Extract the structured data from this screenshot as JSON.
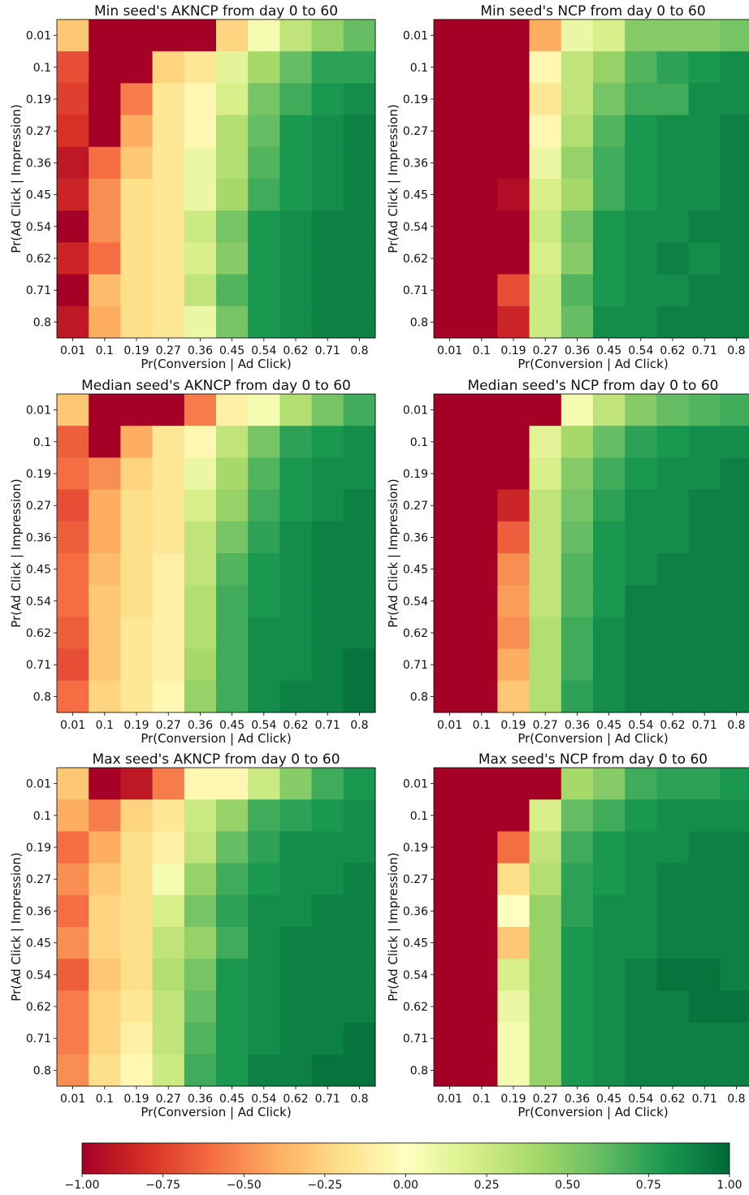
{
  "colormap": {
    "name": "RdYlGn",
    "stops": [
      "#a50026",
      "#d73027",
      "#f46d43",
      "#fdae61",
      "#fee08b",
      "#ffffbf",
      "#d9ef8b",
      "#a6d96a",
      "#66bd63",
      "#1a9850",
      "#006837"
    ]
  },
  "chart_data": [
    {
      "type": "heatmap",
      "title": "Min seed's AKNCP from day 0 to 60",
      "xlabel": "Pr(Conversion | Ad Click)",
      "ylabel": "Pr(Ad Click | Impression)",
      "x": [
        "0.01",
        "0.1",
        "0.19",
        "0.27",
        "0.36",
        "0.45",
        "0.54",
        "0.62",
        "0.71",
        "0.8"
      ],
      "y": [
        "0.01",
        "0.1",
        "0.19",
        "0.27",
        "0.36",
        "0.45",
        "0.54",
        "0.62",
        "0.71",
        "0.8"
      ],
      "values": [
        [
          -0.3,
          -1,
          -1,
          -1,
          -1,
          -0.25,
          0.05,
          0.3,
          0.45,
          0.6
        ],
        [
          -0.7,
          -1,
          -1,
          -0.25,
          -0.15,
          0.15,
          0.4,
          0.6,
          0.75,
          0.75
        ],
        [
          -0.75,
          -1,
          -0.55,
          -0.15,
          -0.05,
          0.2,
          0.55,
          0.7,
          0.8,
          0.85
        ],
        [
          -0.8,
          -1,
          -0.4,
          -0.15,
          -0.05,
          0.35,
          0.6,
          0.8,
          0.85,
          0.9
        ],
        [
          -0.9,
          -0.6,
          -0.3,
          -0.15,
          0.1,
          0.35,
          0.65,
          0.8,
          0.85,
          0.9
        ],
        [
          -0.85,
          -0.5,
          -0.2,
          -0.15,
          0.1,
          0.4,
          0.7,
          0.8,
          0.85,
          0.9
        ],
        [
          -1,
          -0.5,
          -0.2,
          -0.15,
          0.25,
          0.55,
          0.8,
          0.85,
          0.9,
          0.9
        ],
        [
          -0.85,
          -0.6,
          -0.2,
          -0.15,
          0.2,
          0.5,
          0.8,
          0.85,
          0.9,
          0.9
        ],
        [
          -1,
          -0.35,
          -0.2,
          -0.15,
          0.3,
          0.65,
          0.8,
          0.85,
          0.9,
          0.9
        ],
        [
          -0.9,
          -0.4,
          -0.2,
          -0.15,
          0.1,
          0.55,
          0.8,
          0.85,
          0.9,
          0.9
        ]
      ],
      "vmin": -1,
      "vmax": 1
    },
    {
      "type": "heatmap",
      "title": "Min seed's NCP from day 0 to 60",
      "xlabel": "Pr(Conversion | Ad Click)",
      "ylabel": "Pr(Ad Click | Impression)",
      "x": [
        "0.01",
        "0.1",
        "0.19",
        "0.27",
        "0.36",
        "0.45",
        "0.54",
        "0.62",
        "0.71",
        "0.8"
      ],
      "y": [
        "0.01",
        "0.1",
        "0.19",
        "0.27",
        "0.36",
        "0.45",
        "0.54",
        "0.62",
        "0.71",
        "0.8"
      ],
      "values": [
        [
          -1,
          -1,
          -1,
          -0.4,
          0.1,
          0.2,
          0.5,
          0.5,
          0.5,
          0.55
        ],
        [
          -1,
          -1,
          -1,
          -0.05,
          0.3,
          0.45,
          0.65,
          0.75,
          0.8,
          0.85
        ],
        [
          -1,
          -1,
          -1,
          -0.15,
          0.3,
          0.55,
          0.7,
          0.7,
          0.85,
          0.85
        ],
        [
          -1,
          -1,
          -1,
          -0.05,
          0.35,
          0.65,
          0.8,
          0.85,
          0.85,
          0.9
        ],
        [
          -1,
          -1,
          -1,
          0.1,
          0.45,
          0.7,
          0.8,
          0.85,
          0.85,
          0.9
        ],
        [
          -1,
          -1,
          -0.95,
          0.2,
          0.4,
          0.7,
          0.8,
          0.85,
          0.85,
          0.9
        ],
        [
          -1,
          -1,
          -1,
          0.25,
          0.55,
          0.8,
          0.85,
          0.85,
          0.9,
          0.9
        ],
        [
          -1,
          -1,
          -1,
          0.2,
          0.5,
          0.8,
          0.85,
          0.9,
          0.85,
          0.9
        ],
        [
          -1,
          -1,
          -0.7,
          0.25,
          0.65,
          0.8,
          0.85,
          0.85,
          0.9,
          0.9
        ],
        [
          -1,
          -1,
          -0.85,
          0.25,
          0.6,
          0.85,
          0.85,
          0.9,
          0.9,
          0.9
        ]
      ],
      "vmin": -1,
      "vmax": 1
    },
    {
      "type": "heatmap",
      "title": "Median seed's AKNCP from day 0 to 60",
      "xlabel": "Pr(Conversion | Ad Click)",
      "ylabel": "Pr(Ad Click | Impression)",
      "x": [
        "0.01",
        "0.1",
        "0.19",
        "0.27",
        "0.36",
        "0.45",
        "0.54",
        "0.62",
        "0.71",
        "0.8"
      ],
      "y": [
        "0.01",
        "0.1",
        "0.19",
        "0.27",
        "0.36",
        "0.45",
        "0.54",
        "0.62",
        "0.71",
        "0.8"
      ],
      "values": [
        [
          -0.3,
          -1,
          -1,
          -1,
          -0.55,
          -0.1,
          0.05,
          0.35,
          0.55,
          0.7
        ],
        [
          -0.65,
          -1,
          -0.4,
          -0.15,
          -0.05,
          0.3,
          0.55,
          0.75,
          0.8,
          0.85
        ],
        [
          -0.6,
          -0.5,
          -0.25,
          -0.15,
          0.1,
          0.4,
          0.65,
          0.8,
          0.85,
          0.85
        ],
        [
          -0.7,
          -0.4,
          -0.2,
          -0.15,
          0.2,
          0.45,
          0.7,
          0.8,
          0.85,
          0.9
        ],
        [
          -0.65,
          -0.4,
          -0.2,
          -0.15,
          0.3,
          0.55,
          0.75,
          0.85,
          0.9,
          0.9
        ],
        [
          -0.6,
          -0.35,
          -0.2,
          -0.1,
          0.3,
          0.65,
          0.8,
          0.85,
          0.9,
          0.9
        ],
        [
          -0.6,
          -0.3,
          -0.2,
          -0.1,
          0.35,
          0.7,
          0.8,
          0.85,
          0.9,
          0.9
        ],
        [
          -0.65,
          -0.3,
          -0.15,
          -0.1,
          0.35,
          0.7,
          0.85,
          0.85,
          0.9,
          0.9
        ],
        [
          -0.7,
          -0.3,
          -0.15,
          -0.1,
          0.4,
          0.7,
          0.85,
          0.85,
          0.9,
          0.95
        ],
        [
          -0.6,
          -0.25,
          -0.15,
          -0.05,
          0.45,
          0.7,
          0.85,
          0.9,
          0.9,
          0.95
        ]
      ],
      "vmin": -1,
      "vmax": 1
    },
    {
      "type": "heatmap",
      "title": "Median seed's NCP from day 0 to 60",
      "xlabel": "Pr(Conversion | Ad Click)",
      "ylabel": "Pr(Ad Click | Impression)",
      "x": [
        "0.01",
        "0.1",
        "0.19",
        "0.27",
        "0.36",
        "0.45",
        "0.54",
        "0.62",
        "0.71",
        "0.8"
      ],
      "y": [
        "0.01",
        "0.1",
        "0.19",
        "0.27",
        "0.36",
        "0.45",
        "0.54",
        "0.62",
        "0.71",
        "0.8"
      ],
      "values": [
        [
          -1,
          -1,
          -1,
          -1,
          0.05,
          0.3,
          0.5,
          0.6,
          0.65,
          0.7
        ],
        [
          -1,
          -1,
          -1,
          0.15,
          0.4,
          0.6,
          0.75,
          0.8,
          0.85,
          0.85
        ],
        [
          -1,
          -1,
          -1,
          0.2,
          0.5,
          0.7,
          0.8,
          0.85,
          0.85,
          0.9
        ],
        [
          -1,
          -1,
          -0.85,
          0.3,
          0.55,
          0.75,
          0.85,
          0.85,
          0.9,
          0.9
        ],
        [
          -1,
          -1,
          -0.65,
          0.3,
          0.6,
          0.8,
          0.85,
          0.85,
          0.9,
          0.9
        ],
        [
          -1,
          -1,
          -0.5,
          0.3,
          0.65,
          0.8,
          0.85,
          0.9,
          0.9,
          0.9
        ],
        [
          -1,
          -1,
          -0.45,
          0.3,
          0.65,
          0.8,
          0.9,
          0.9,
          0.9,
          0.9
        ],
        [
          -1,
          -1,
          -0.5,
          0.35,
          0.7,
          0.85,
          0.9,
          0.9,
          0.9,
          0.9
        ],
        [
          -1,
          -1,
          -0.4,
          0.35,
          0.7,
          0.85,
          0.9,
          0.9,
          0.9,
          0.9
        ],
        [
          -1,
          -1,
          -0.3,
          0.35,
          0.75,
          0.85,
          0.9,
          0.9,
          0.9,
          0.9
        ]
      ],
      "vmin": -1,
      "vmax": 1
    },
    {
      "type": "heatmap",
      "title": "Max seed's AKNCP from day 0 to 60",
      "xlabel": "Pr(Conversion | Ad Click)",
      "ylabel": "Pr(Ad Click | Impression)",
      "x": [
        "0.01",
        "0.1",
        "0.19",
        "0.27",
        "0.36",
        "0.45",
        "0.54",
        "0.62",
        "0.71",
        "0.8"
      ],
      "y": [
        "0.01",
        "0.1",
        "0.19",
        "0.27",
        "0.36",
        "0.45",
        "0.54",
        "0.62",
        "0.71",
        "0.8"
      ],
      "values": [
        [
          -0.3,
          -1,
          -0.9,
          -0.55,
          -0.05,
          -0.05,
          0.25,
          0.5,
          0.7,
          0.8
        ],
        [
          -0.4,
          -0.55,
          -0.25,
          -0.15,
          0.25,
          0.45,
          0.7,
          0.75,
          0.8,
          0.85
        ],
        [
          -0.6,
          -0.4,
          -0.2,
          -0.1,
          0.3,
          0.6,
          0.75,
          0.85,
          0.85,
          0.85
        ],
        [
          -0.5,
          -0.3,
          -0.2,
          0.05,
          0.45,
          0.7,
          0.8,
          0.85,
          0.85,
          0.9
        ],
        [
          -0.6,
          -0.25,
          -0.2,
          0.2,
          0.55,
          0.75,
          0.85,
          0.85,
          0.9,
          0.9
        ],
        [
          -0.5,
          -0.25,
          -0.2,
          0.3,
          0.45,
          0.7,
          0.85,
          0.9,
          0.9,
          0.9
        ],
        [
          -0.65,
          -0.3,
          -0.2,
          0.35,
          0.55,
          0.8,
          0.85,
          0.9,
          0.9,
          0.9
        ],
        [
          -0.55,
          -0.25,
          -0.15,
          0.3,
          0.6,
          0.8,
          0.85,
          0.9,
          0.9,
          0.9
        ],
        [
          -0.55,
          -0.25,
          -0.1,
          0.3,
          0.65,
          0.8,
          0.85,
          0.9,
          0.9,
          0.95
        ],
        [
          -0.5,
          -0.2,
          -0.05,
          0.25,
          0.7,
          0.8,
          0.9,
          0.9,
          0.95,
          0.95
        ]
      ],
      "vmin": -1,
      "vmax": 1
    },
    {
      "type": "heatmap",
      "title": "Max seed's NCP from day 0 to 60",
      "xlabel": "Pr(Conversion | Ad Click)",
      "ylabel": "Pr(Ad Click | Impression)",
      "x": [
        "0.01",
        "0.1",
        "0.19",
        "0.27",
        "0.36",
        "0.45",
        "0.54",
        "0.62",
        "0.71",
        "0.8"
      ],
      "y": [
        "0.01",
        "0.1",
        "0.19",
        "0.27",
        "0.36",
        "0.45",
        "0.54",
        "0.62",
        "0.71",
        "0.8"
      ],
      "values": [
        [
          -1,
          -1,
          -1,
          -1,
          0.4,
          0.5,
          0.7,
          0.75,
          0.75,
          0.8
        ],
        [
          -1,
          -1,
          -1,
          0.2,
          0.6,
          0.7,
          0.8,
          0.85,
          0.85,
          0.85
        ],
        [
          -1,
          -1,
          -0.6,
          0.3,
          0.7,
          0.8,
          0.85,
          0.85,
          0.9,
          0.9
        ],
        [
          -1,
          -1,
          -0.2,
          0.35,
          0.75,
          0.8,
          0.85,
          0.9,
          0.9,
          0.9
        ],
        [
          -1,
          -1,
          0,
          0.45,
          0.75,
          0.85,
          0.85,
          0.9,
          0.9,
          0.9
        ],
        [
          -1,
          -1,
          -0.3,
          0.45,
          0.8,
          0.85,
          0.85,
          0.9,
          0.9,
          0.9
        ],
        [
          -1,
          -1,
          0.2,
          0.45,
          0.8,
          0.85,
          0.9,
          0.95,
          0.95,
          0.9
        ],
        [
          -1,
          -1,
          0.1,
          0.45,
          0.8,
          0.85,
          0.9,
          0.9,
          0.95,
          0.95
        ],
        [
          -1,
          -1,
          0.05,
          0.45,
          0.8,
          0.85,
          0.9,
          0.9,
          0.9,
          0.9
        ],
        [
          -1,
          -1,
          0.05,
          0.45,
          0.8,
          0.85,
          0.9,
          0.9,
          0.9,
          0.9
        ]
      ],
      "vmin": -1,
      "vmax": 1
    }
  ],
  "colorbar": {
    "ticks": [
      "−1.00",
      "−0.75",
      "−0.50",
      "−0.25",
      "0.00",
      "0.25",
      "0.50",
      "0.75",
      "1.00"
    ],
    "tick_values": [
      -1,
      -0.75,
      -0.5,
      -0.25,
      0,
      0.25,
      0.5,
      0.75,
      1
    ]
  }
}
